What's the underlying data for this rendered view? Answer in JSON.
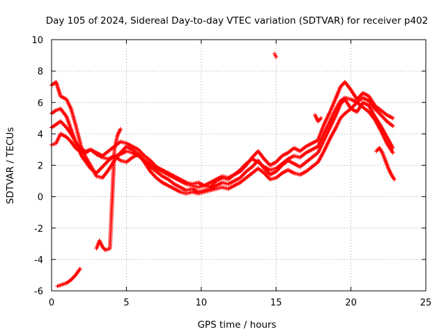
{
  "chart_data": {
    "type": "scatter",
    "title": "Day 105 of 2024, Sidereal Day-to-day VTEC variation (SDTVAR) for receiver p402",
    "xlabel": "GPS time / hours",
    "ylabel": "SDTVAR / TECUs",
    "xlim": [
      0,
      25
    ],
    "ylim": [
      -6,
      10
    ],
    "xticks": [
      "0",
      "5",
      "10",
      "15",
      "20",
      "25"
    ],
    "yticks": [
      "-6",
      "-4",
      "-2",
      "0",
      "2",
      "4",
      "6",
      "8",
      "10"
    ],
    "grid": true,
    "marker": "plus",
    "color": "#ff0000",
    "series": [
      {
        "name": "s1",
        "x": [
          0.0,
          0.3,
          0.6,
          1.0,
          1.3,
          1.6,
          2.0,
          2.3,
          2.6,
          3.0,
          3.4,
          3.8,
          4.2,
          4.6,
          5.0,
          5.4,
          5.8,
          6.2,
          6.6,
          7.0,
          7.4,
          7.8,
          8.2,
          8.6,
          9.0,
          9.4,
          9.8,
          10.2,
          10.6,
          11.0,
          11.4,
          11.8,
          12.2,
          12.6,
          13.0,
          13.4,
          13.8,
          14.2,
          14.6,
          15.0,
          15.4,
          15.8,
          16.2,
          16.6,
          17.0,
          17.4,
          17.8,
          18.2,
          18.6,
          19.0,
          19.3,
          19.6,
          20.0,
          20.4,
          20.8,
          21.2,
          21.6,
          22.0,
          22.4,
          22.8
        ],
        "values": [
          7.1,
          7.3,
          6.4,
          6.2,
          5.6,
          4.6,
          3.1,
          2.8,
          3.0,
          2.8,
          2.6,
          2.9,
          3.2,
          3.5,
          3.4,
          3.2,
          3.0,
          2.6,
          2.3,
          1.9,
          1.7,
          1.5,
          1.3,
          1.1,
          0.9,
          0.8,
          0.9,
          0.7,
          0.6,
          1.0,
          1.2,
          1.1,
          1.4,
          1.6,
          2.0,
          2.5,
          2.9,
          2.4,
          2.0,
          2.2,
          2.6,
          2.8,
          3.1,
          2.9,
          3.2,
          3.4,
          3.6,
          4.6,
          5.4,
          6.3,
          7.0,
          7.3,
          6.8,
          6.2,
          6.6,
          6.4,
          5.8,
          5.5,
          5.2,
          5.0
        ]
      },
      {
        "name": "s2",
        "x": [
          0.0,
          0.3,
          0.6,
          1.0,
          1.3,
          1.6,
          2.0,
          2.3,
          2.6,
          3.0,
          3.4,
          3.8,
          4.2,
          4.6,
          5.0,
          5.4,
          5.8,
          6.2,
          6.6,
          7.0,
          7.4,
          7.8,
          8.2,
          8.6,
          9.0,
          9.4,
          9.8,
          10.2,
          10.6,
          11.0,
          11.4,
          11.8,
          12.2,
          12.6,
          13.0,
          13.4,
          13.8,
          14.2,
          14.6,
          15.0,
          15.4,
          15.8,
          16.2,
          16.6,
          17.0,
          17.4,
          17.8,
          18.2,
          18.6,
          19.0,
          19.3,
          19.6,
          20.0,
          20.4,
          20.8,
          21.2,
          21.6,
          22.0,
          22.4,
          22.8
        ],
        "values": [
          5.3,
          5.5,
          5.6,
          5.1,
          4.3,
          3.5,
          2.6,
          2.2,
          1.8,
          1.5,
          1.9,
          2.3,
          2.6,
          2.3,
          2.2,
          2.5,
          2.7,
          2.3,
          1.9,
          1.6,
          1.3,
          1.1,
          0.8,
          0.6,
          0.4,
          0.5,
          0.3,
          0.4,
          0.5,
          0.7,
          0.9,
          0.8,
          1.0,
          1.2,
          1.6,
          1.9,
          2.3,
          1.8,
          1.4,
          1.6,
          2.0,
          2.3,
          2.1,
          1.9,
          2.2,
          2.5,
          2.8,
          3.6,
          4.4,
          5.2,
          5.9,
          6.2,
          5.6,
          5.4,
          6.0,
          5.8,
          5.1,
          4.5,
          3.8,
          3.1
        ]
      },
      {
        "name": "s3",
        "x": [
          0.0,
          0.3,
          0.6,
          1.0,
          1.3,
          1.6,
          2.0,
          2.3,
          2.6,
          3.0,
          3.4,
          3.8,
          4.2,
          4.6,
          5.0,
          5.4,
          5.8,
          6.2,
          6.6,
          7.0,
          7.4,
          7.8,
          8.2,
          8.6,
          9.0,
          9.4,
          9.8,
          10.2,
          10.6,
          11.0,
          11.4,
          11.8,
          12.2,
          12.6,
          13.0,
          13.4,
          13.8,
          14.2,
          14.6,
          15.0,
          15.4,
          15.8,
          16.2,
          16.6,
          17.0,
          17.4,
          17.8,
          18.2,
          18.6,
          19.0,
          19.3,
          19.6,
          20.0,
          20.4,
          20.8,
          21.2,
          21.6,
          22.0,
          22.4,
          22.8
        ],
        "values": [
          4.4,
          4.6,
          4.8,
          4.4,
          4.0,
          3.5,
          3.0,
          2.5,
          2.0,
          1.3,
          1.2,
          1.7,
          2.3,
          2.8,
          3.2,
          3.0,
          2.7,
          2.2,
          1.6,
          1.2,
          0.9,
          0.7,
          0.5,
          0.3,
          0.2,
          0.3,
          0.2,
          0.3,
          0.4,
          0.5,
          0.6,
          0.5,
          0.7,
          0.9,
          1.2,
          1.5,
          1.8,
          1.5,
          1.1,
          1.2,
          1.5,
          1.7,
          1.5,
          1.4,
          1.6,
          1.9,
          2.2,
          2.9,
          3.7,
          4.4,
          5.0,
          5.3,
          5.6,
          6.0,
          5.7,
          5.4,
          4.9,
          4.2,
          3.4,
          2.8
        ]
      },
      {
        "name": "s4",
        "x": [
          0.0,
          0.3,
          0.6,
          1.0,
          1.3,
          1.6,
          2.0,
          2.3,
          2.6,
          3.0,
          3.4,
          3.8,
          4.2,
          4.6,
          5.0,
          5.4,
          5.8,
          6.2,
          6.6,
          7.0,
          7.4,
          7.8,
          8.2,
          8.6,
          9.0,
          9.4,
          9.8,
          10.2,
          10.6,
          11.0,
          11.4,
          11.8,
          12.2,
          12.6,
          13.0,
          13.4,
          13.8,
          14.2,
          14.6,
          15.0,
          15.4,
          15.8,
          16.2,
          16.6,
          17.0,
          17.4,
          17.8,
          18.2,
          18.6,
          19.0,
          19.3,
          19.6,
          20.0,
          20.4,
          20.8,
          21.2,
          21.6,
          22.0,
          22.4,
          22.8
        ],
        "values": [
          3.3,
          3.4,
          4.0,
          3.8,
          3.5,
          3.1,
          2.8,
          2.9,
          3.0,
          2.7,
          2.5,
          2.4,
          2.6,
          2.7,
          2.9,
          2.8,
          2.6,
          2.3,
          2.1,
          1.8,
          1.6,
          1.4,
          1.2,
          1.0,
          0.8,
          0.7,
          0.6,
          0.7,
          0.9,
          1.1,
          1.3,
          1.2,
          1.4,
          1.7,
          2.1,
          2.4,
          2.2,
          1.9,
          1.7,
          1.8,
          2.1,
          2.4,
          2.6,
          2.5,
          2.8,
          3.0,
          3.2,
          4.0,
          4.8,
          5.6,
          6.1,
          6.3,
          6.2,
          6.0,
          6.3,
          6.1,
          5.6,
          5.2,
          4.8,
          4.5
        ]
      },
      {
        "name": "s5",
        "x": [
          0.4,
          0.7,
          1.0,
          1.3,
          1.6,
          1.9,
          3.0,
          3.2,
          3.4,
          3.6,
          3.9,
          4.2,
          4.4,
          4.6,
          14.9,
          15.0,
          17.6,
          17.8,
          18.0,
          21.7,
          21.9,
          22.1,
          22.3,
          22.5,
          22.7,
          22.9
        ],
        "values": [
          -5.7,
          -5.6,
          -5.5,
          -5.3,
          -5.0,
          -4.6,
          -3.3,
          -2.8,
          -3.2,
          -3.4,
          -3.3,
          3.0,
          3.9,
          4.3,
          9.1,
          8.9,
          5.2,
          4.8,
          5.0,
          2.9,
          3.1,
          2.8,
          2.3,
          1.8,
          1.4,
          1.1
        ]
      }
    ]
  }
}
